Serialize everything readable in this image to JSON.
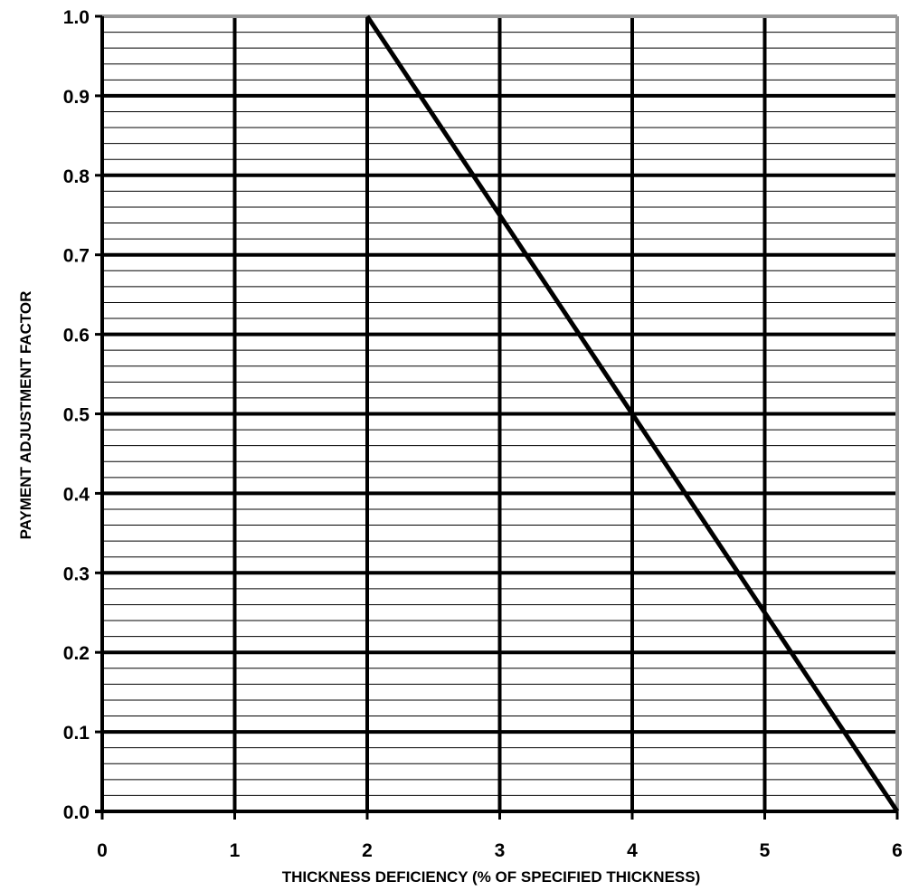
{
  "chart_data": {
    "type": "line",
    "title": "",
    "xlabel": "THICKNESS DEFICIENCY (% OF SPECIFIED THICKNESS)",
    "ylabel": "PAYMENT ADJUSTMENT FACTOR",
    "xlim": [
      0,
      6
    ],
    "ylim": [
      0,
      1
    ],
    "x_ticks": [
      "0",
      "1",
      "2",
      "3",
      "4",
      "5",
      "6"
    ],
    "y_ticks": [
      "0.0",
      "0.1",
      "0.2",
      "0.3",
      "0.4",
      "0.5",
      "0.6",
      "0.7",
      "0.8",
      "0.9",
      "1.0"
    ],
    "minor_y_step": 0.02,
    "grid": true,
    "legend": "none",
    "series": [
      {
        "x": [
          2,
          6
        ],
        "y": [
          1.0,
          0.0
        ]
      }
    ],
    "colors": {
      "line": "#000000",
      "grid": "#000000",
      "frame_right": "#999999"
    }
  }
}
